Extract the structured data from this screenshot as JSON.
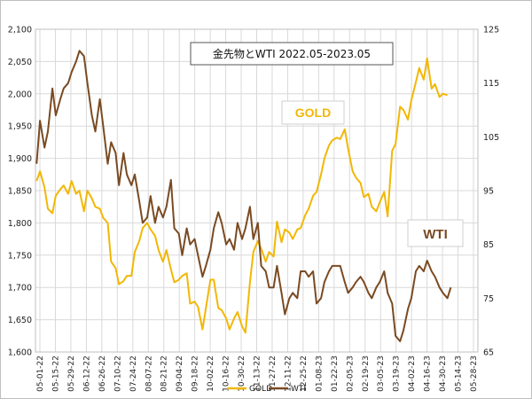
{
  "chart_data": {
    "type": "line",
    "title": "金先物とWTI  2022.05-2023.05",
    "grid": true,
    "y_left": {
      "ticks": [
        "1,600",
        "1,650",
        "1,700",
        "1,750",
        "1,800",
        "1,850",
        "1,900",
        "1,950",
        "2,000",
        "2,050",
        "2,100"
      ],
      "range": [
        1600,
        2100
      ]
    },
    "y_right": {
      "ticks": [
        "65",
        "75",
        "85",
        "95",
        "105",
        "115",
        "125"
      ],
      "range": [
        65,
        125
      ]
    },
    "x_ticks": [
      "05-01-22",
      "05-15-22",
      "05-29-22",
      "06-12-22",
      "06-26-22",
      "07-10-22",
      "07-24-22",
      "08-07-22",
      "08-21-22",
      "09-04-22",
      "09-18-22",
      "10-02-22",
      "10-16-22",
      "10-30-22",
      "11-13-22",
      "11-27-22",
      "12-11-22",
      "12-25-22",
      "01-08-23",
      "01-22-23",
      "02-05-23",
      "02-19-23",
      "03-05-23",
      "03-19-23",
      "04-02-23",
      "04-16-23",
      "04-30-23",
      "05-14-23",
      "05-28-23"
    ],
    "x_range": [
      "2022-05-01",
      "2023-05-28"
    ],
    "annotations": [
      {
        "text": "GOLD",
        "color": "#F2B705"
      },
      {
        "text": "WTI",
        "color": "#7A4A22"
      }
    ],
    "legend": [
      "GOLD",
      "WTI"
    ],
    "series": [
      {
        "name": "GOLD",
        "axis": "left",
        "color": "#F2B705",
        "points": [
          [
            "2022-05-02",
            1865
          ],
          [
            "2022-05-05",
            1880
          ],
          [
            "2022-05-09",
            1855
          ],
          [
            "2022-05-12",
            1822
          ],
          [
            "2022-05-16",
            1815
          ],
          [
            "2022-05-19",
            1842
          ],
          [
            "2022-05-23",
            1852
          ],
          [
            "2022-05-26",
            1858
          ],
          [
            "2022-05-30",
            1845
          ],
          [
            "2022-06-02",
            1865
          ],
          [
            "2022-06-06",
            1845
          ],
          [
            "2022-06-09",
            1850
          ],
          [
            "2022-06-13",
            1818
          ],
          [
            "2022-06-16",
            1850
          ],
          [
            "2022-06-20",
            1838
          ],
          [
            "2022-06-23",
            1825
          ],
          [
            "2022-06-27",
            1822
          ],
          [
            "2022-06-30",
            1808
          ],
          [
            "2022-07-04",
            1800
          ],
          [
            "2022-07-07",
            1740
          ],
          [
            "2022-07-11",
            1730
          ],
          [
            "2022-07-14",
            1705
          ],
          [
            "2022-07-18",
            1710
          ],
          [
            "2022-07-21",
            1718
          ],
          [
            "2022-07-25",
            1718
          ],
          [
            "2022-07-28",
            1755
          ],
          [
            "2022-08-01",
            1772
          ],
          [
            "2022-08-04",
            1792
          ],
          [
            "2022-08-08",
            1800
          ],
          [
            "2022-08-11",
            1790
          ],
          [
            "2022-08-15",
            1780
          ],
          [
            "2022-08-18",
            1758
          ],
          [
            "2022-08-22",
            1740
          ],
          [
            "2022-08-25",
            1758
          ],
          [
            "2022-08-29",
            1728
          ],
          [
            "2022-09-01",
            1708
          ],
          [
            "2022-09-05",
            1712
          ],
          [
            "2022-09-08",
            1718
          ],
          [
            "2022-09-12",
            1722
          ],
          [
            "2022-09-15",
            1675
          ],
          [
            "2022-09-19",
            1678
          ],
          [
            "2022-09-22",
            1670
          ],
          [
            "2022-09-26",
            1635
          ],
          [
            "2022-09-29",
            1668
          ],
          [
            "2022-10-03",
            1712
          ],
          [
            "2022-10-06",
            1712
          ],
          [
            "2022-10-10",
            1668
          ],
          [
            "2022-10-13",
            1665
          ],
          [
            "2022-10-17",
            1652
          ],
          [
            "2022-10-20",
            1635
          ],
          [
            "2022-10-24",
            1652
          ],
          [
            "2022-10-27",
            1662
          ],
          [
            "2022-10-31",
            1640
          ],
          [
            "2022-11-03",
            1630
          ],
          [
            "2022-11-07",
            1708
          ],
          [
            "2022-11-10",
            1755
          ],
          [
            "2022-11-14",
            1772
          ],
          [
            "2022-11-17",
            1760
          ],
          [
            "2022-11-21",
            1740
          ],
          [
            "2022-11-24",
            1755
          ],
          [
            "2022-11-28",
            1748
          ],
          [
            "2022-12-01",
            1802
          ],
          [
            "2022-12-05",
            1770
          ],
          [
            "2022-12-08",
            1790
          ],
          [
            "2022-12-12",
            1785
          ],
          [
            "2022-12-15",
            1775
          ],
          [
            "2022-12-19",
            1790
          ],
          [
            "2022-12-22",
            1792
          ],
          [
            "2022-12-26",
            1812
          ],
          [
            "2022-12-29",
            1822
          ],
          [
            "2023-01-02",
            1842
          ],
          [
            "2023-01-05",
            1848
          ],
          [
            "2023-01-09",
            1875
          ],
          [
            "2023-01-12",
            1900
          ],
          [
            "2023-01-16",
            1920
          ],
          [
            "2023-01-19",
            1928
          ],
          [
            "2023-01-23",
            1932
          ],
          [
            "2023-01-26",
            1930
          ],
          [
            "2023-01-30",
            1945
          ],
          [
            "2023-02-02",
            1915
          ],
          [
            "2023-02-06",
            1880
          ],
          [
            "2023-02-09",
            1870
          ],
          [
            "2023-02-13",
            1862
          ],
          [
            "2023-02-16",
            1840
          ],
          [
            "2023-02-20",
            1845
          ],
          [
            "2023-02-23",
            1825
          ],
          [
            "2023-02-27",
            1818
          ],
          [
            "2023-03-02",
            1832
          ],
          [
            "2023-03-06",
            1848
          ],
          [
            "2023-03-09",
            1810
          ],
          [
            "2023-03-13",
            1912
          ],
          [
            "2023-03-16",
            1922
          ],
          [
            "2023-03-20",
            1980
          ],
          [
            "2023-03-23",
            1975
          ],
          [
            "2023-03-27",
            1960
          ],
          [
            "2023-03-30",
            1990
          ],
          [
            "2023-04-03",
            2018
          ],
          [
            "2023-04-06",
            2040
          ],
          [
            "2023-04-10",
            2022
          ],
          [
            "2023-04-13",
            2055
          ],
          [
            "2023-04-17",
            2008
          ],
          [
            "2023-04-20",
            2015
          ],
          [
            "2023-04-24",
            1995
          ],
          [
            "2023-04-27",
            2000
          ],
          [
            "2023-05-01",
            1998
          ]
        ]
      },
      {
        "name": "WTI",
        "axis": "right",
        "color": "#7A4A22",
        "points": [
          [
            "2022-05-02",
            100
          ],
          [
            "2022-05-05",
            108
          ],
          [
            "2022-05-09",
            103
          ],
          [
            "2022-05-12",
            106
          ],
          [
            "2022-05-16",
            114
          ],
          [
            "2022-05-19",
            109
          ],
          [
            "2022-05-23",
            112
          ],
          [
            "2022-05-26",
            114
          ],
          [
            "2022-05-30",
            115
          ],
          [
            "2022-06-02",
            117
          ],
          [
            "2022-06-06",
            119
          ],
          [
            "2022-06-09",
            121
          ],
          [
            "2022-06-13",
            120
          ],
          [
            "2022-06-16",
            115
          ],
          [
            "2022-06-20",
            109
          ],
          [
            "2022-06-23",
            106
          ],
          [
            "2022-06-27",
            112
          ],
          [
            "2022-06-30",
            107
          ],
          [
            "2022-07-04",
            100
          ],
          [
            "2022-07-07",
            104
          ],
          [
            "2022-07-11",
            102
          ],
          [
            "2022-07-14",
            96
          ],
          [
            "2022-07-18",
            102
          ],
          [
            "2022-07-21",
            98
          ],
          [
            "2022-07-25",
            96
          ],
          [
            "2022-07-28",
            98
          ],
          [
            "2022-08-01",
            93
          ],
          [
            "2022-08-04",
            89
          ],
          [
            "2022-08-08",
            90
          ],
          [
            "2022-08-11",
            94
          ],
          [
            "2022-08-15",
            89
          ],
          [
            "2022-08-18",
            92
          ],
          [
            "2022-08-22",
            90
          ],
          [
            "2022-08-25",
            92
          ],
          [
            "2022-08-29",
            97
          ],
          [
            "2022-09-01",
            88
          ],
          [
            "2022-09-05",
            87
          ],
          [
            "2022-09-08",
            83
          ],
          [
            "2022-09-12",
            88
          ],
          [
            "2022-09-15",
            85
          ],
          [
            "2022-09-19",
            86
          ],
          [
            "2022-09-22",
            83
          ],
          [
            "2022-09-26",
            79
          ],
          [
            "2022-09-29",
            81
          ],
          [
            "2022-10-03",
            84
          ],
          [
            "2022-10-06",
            88
          ],
          [
            "2022-10-10",
            91
          ],
          [
            "2022-10-13",
            89
          ],
          [
            "2022-10-17",
            85
          ],
          [
            "2022-10-20",
            86
          ],
          [
            "2022-10-24",
            84
          ],
          [
            "2022-10-27",
            89
          ],
          [
            "2022-10-31",
            86
          ],
          [
            "2022-11-03",
            88
          ],
          [
            "2022-11-07",
            92
          ],
          [
            "2022-11-10",
            86
          ],
          [
            "2022-11-14",
            89
          ],
          [
            "2022-11-17",
            81
          ],
          [
            "2022-11-21",
            80
          ],
          [
            "2022-11-24",
            77
          ],
          [
            "2022-11-28",
            77
          ],
          [
            "2022-12-01",
            81
          ],
          [
            "2022-12-05",
            76
          ],
          [
            "2022-12-08",
            72
          ],
          [
            "2022-12-12",
            75
          ],
          [
            "2022-12-15",
            76
          ],
          [
            "2022-12-19",
            75
          ],
          [
            "2022-12-22",
            80
          ],
          [
            "2022-12-26",
            80
          ],
          [
            "2022-12-29",
            79
          ],
          [
            "2023-01-02",
            80
          ],
          [
            "2023-01-05",
            74
          ],
          [
            "2023-01-09",
            75
          ],
          [
            "2023-01-12",
            78
          ],
          [
            "2023-01-16",
            80
          ],
          [
            "2023-01-19",
            81
          ],
          [
            "2023-01-23",
            81
          ],
          [
            "2023-01-26",
            81
          ],
          [
            "2023-01-30",
            78
          ],
          [
            "2023-02-02",
            76
          ],
          [
            "2023-02-06",
            77
          ],
          [
            "2023-02-09",
            78
          ],
          [
            "2023-02-13",
            79
          ],
          [
            "2023-02-16",
            78
          ],
          [
            "2023-02-20",
            76
          ],
          [
            "2023-02-23",
            75
          ],
          [
            "2023-02-27",
            77
          ],
          [
            "2023-03-02",
            78
          ],
          [
            "2023-03-06",
            80
          ],
          [
            "2023-03-09",
            76
          ],
          [
            "2023-03-13",
            74
          ],
          [
            "2023-03-16",
            68
          ],
          [
            "2023-03-20",
            67
          ],
          [
            "2023-03-23",
            69
          ],
          [
            "2023-03-27",
            73
          ],
          [
            "2023-03-30",
            75
          ],
          [
            "2023-04-03",
            80
          ],
          [
            "2023-04-06",
            81
          ],
          [
            "2023-04-10",
            80
          ],
          [
            "2023-04-13",
            82
          ],
          [
            "2023-04-17",
            80
          ],
          [
            "2023-04-20",
            79
          ],
          [
            "2023-04-24",
            77
          ],
          [
            "2023-04-27",
            76
          ],
          [
            "2023-05-01",
            75
          ],
          [
            "2023-05-04",
            77
          ]
        ]
      }
    ]
  }
}
